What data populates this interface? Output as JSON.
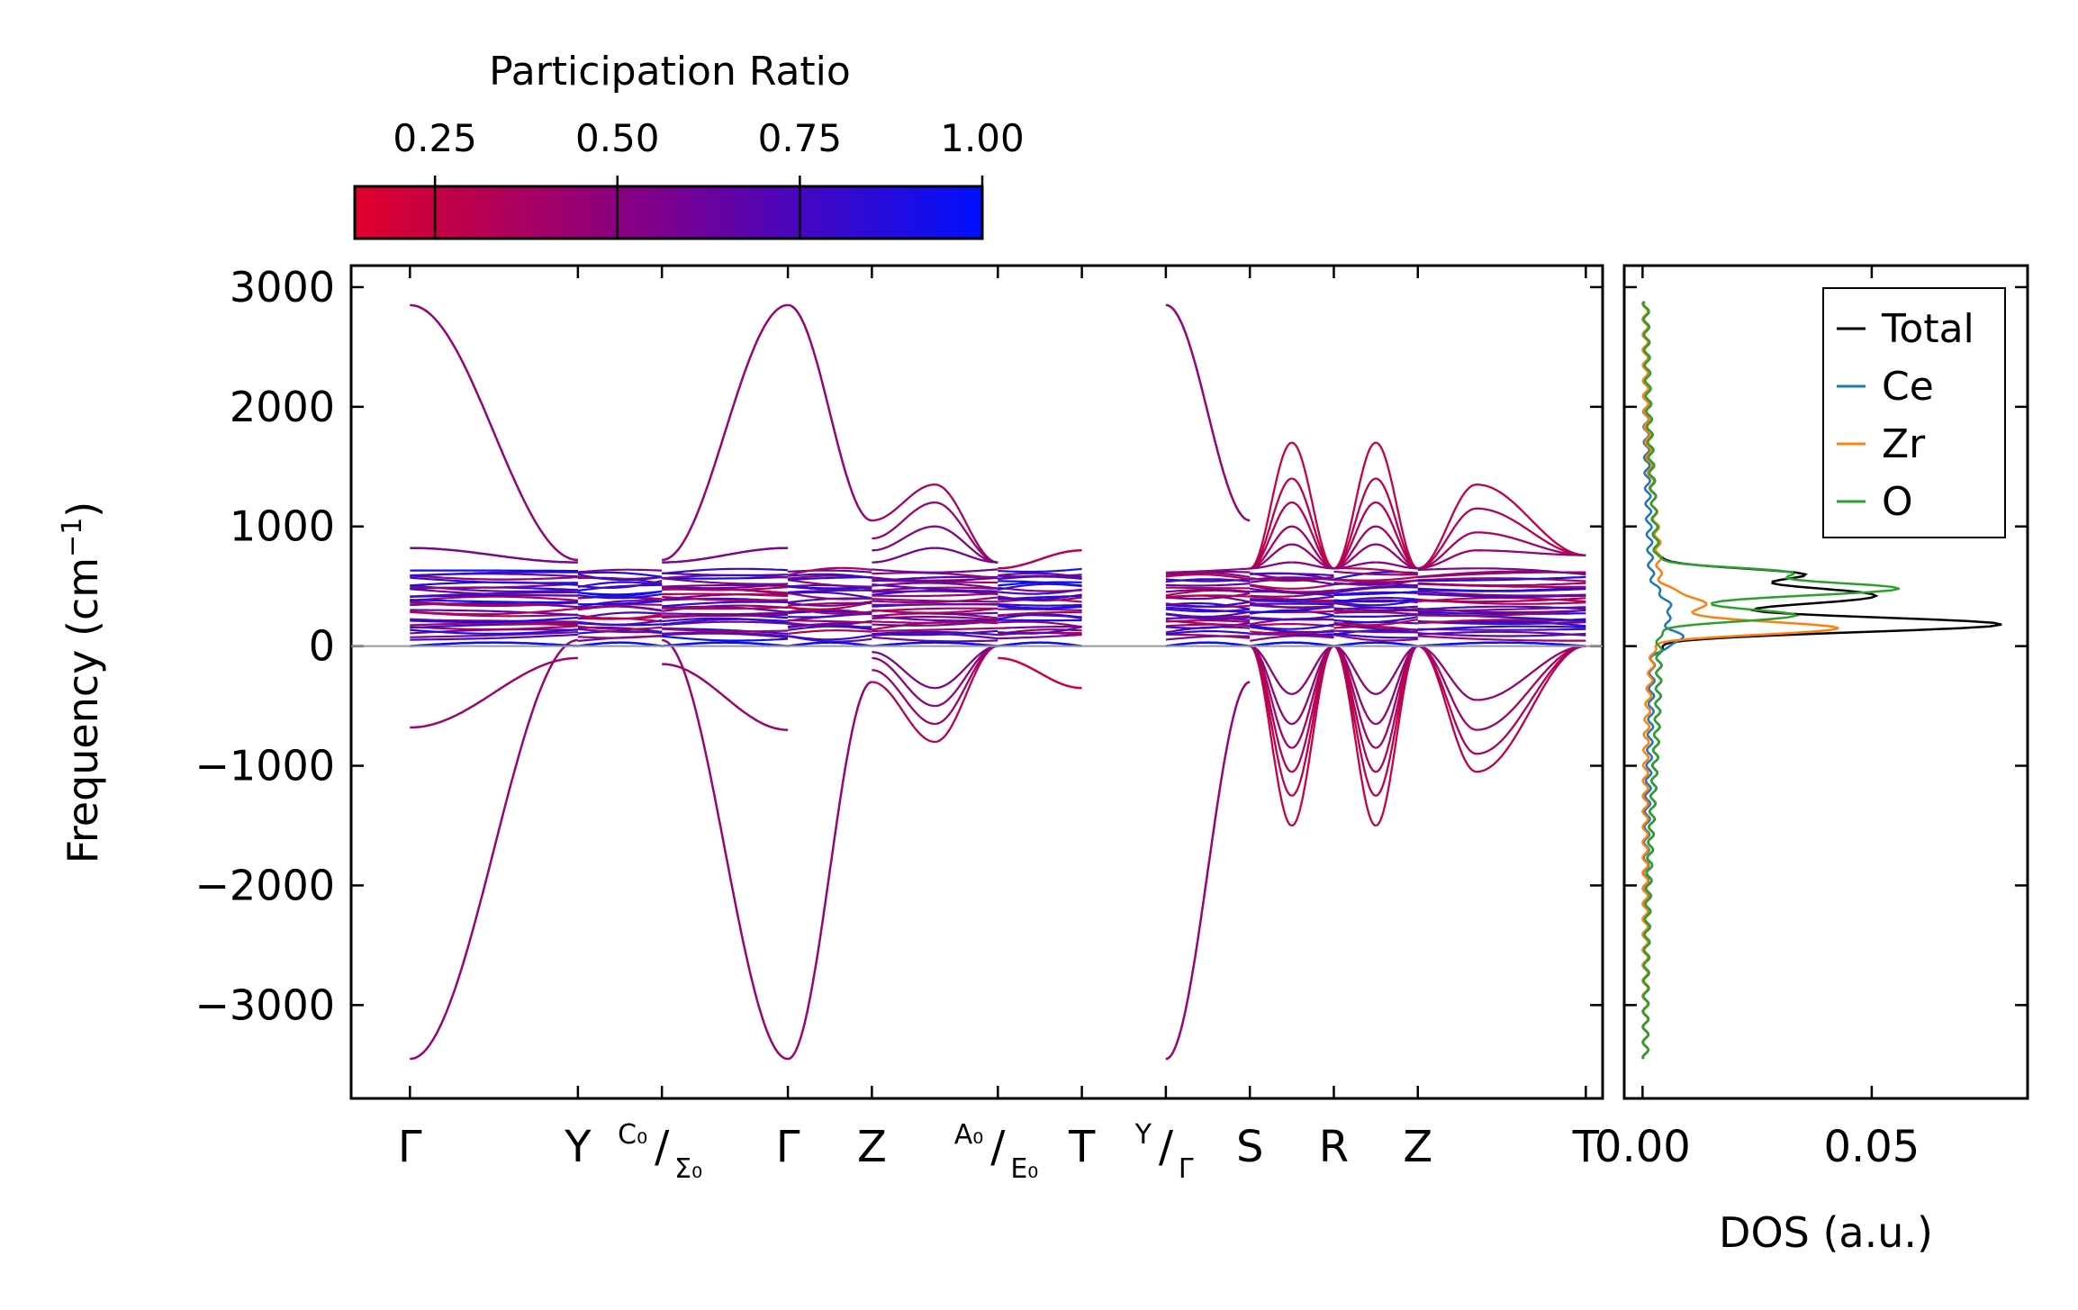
{
  "colorbar": {
    "title": "Participation Ratio",
    "ticks": [
      0.25,
      0.5,
      0.75,
      1.0
    ],
    "tick_labels": [
      "0.25",
      "0.50",
      "0.75",
      "1.00"
    ],
    "range": [
      0.14,
      1.0
    ],
    "color_low": "#e0002a",
    "color_high": "#0010ff"
  },
  "chart_data": [
    {
      "type": "line",
      "title": "",
      "xlabel": "",
      "ylabel_main": "Frequency (cm",
      "ylabel_sup": "−1",
      "ylabel_close": ")",
      "ylim": [
        -3780,
        3180
      ],
      "yticks": [
        -3000,
        -2000,
        -1000,
        0,
        1000,
        2000,
        3000
      ],
      "ytick_labels": [
        "−3000",
        "−2000",
        "−1000",
        "0",
        "1000",
        "2000",
        "3000"
      ],
      "xlim": [
        -0.7,
        14.2
      ],
      "high_symmetry_points": [
        {
          "x": 0,
          "label": "Γ"
        },
        {
          "x": 2,
          "label": "Y"
        },
        {
          "x": 3,
          "top": "C₀",
          "bottom": "Σ₀"
        },
        {
          "x": 4.5,
          "label": "Γ"
        },
        {
          "x": 5.5,
          "label": "Z"
        },
        {
          "x": 7,
          "top": "A₀",
          "bottom": "E₀"
        },
        {
          "x": 8,
          "label": "T"
        },
        {
          "x": 9,
          "top": "Y",
          "bottom": "Γ"
        },
        {
          "x": 10,
          "label": "S"
        },
        {
          "x": 11,
          "label": "R"
        },
        {
          "x": 12,
          "label": "Z"
        },
        {
          "x": 14,
          "label": "T"
        }
      ],
      "segments": [
        [
          0,
          2
        ],
        [
          2,
          3
        ],
        [
          3,
          4.5
        ],
        [
          4.5,
          5.5
        ],
        [
          5.5,
          7
        ],
        [
          7,
          8
        ],
        [
          9,
          10
        ],
        [
          10,
          11
        ],
        [
          11,
          12
        ],
        [
          12,
          14
        ]
      ],
      "notable_bands": {
        "upper_max": 2850,
        "lower_min": -3450,
        "dense_band_range": [
          50,
          650
        ]
      }
    },
    {
      "type": "line",
      "xlabel": "DOS (a.u.)",
      "xlim": [
        -0.004,
        0.084
      ],
      "xticks": [
        0.0,
        0.05
      ],
      "xtick_labels": [
        "0.00",
        "0.05"
      ],
      "legend_position": "top-right",
      "series": [
        {
          "name": "Total",
          "color": "#000000",
          "peak_value": 0.08,
          "peak_at": 230
        },
        {
          "name": "Ce",
          "color": "#1f77b4",
          "peak_value": 0.006,
          "peak_at": 50
        },
        {
          "name": "Zr",
          "color": "#ff7f0e",
          "peak_value": 0.045,
          "peak_at": 150
        },
        {
          "name": "O",
          "color": "#2ca02c",
          "peak_value": 0.056,
          "peak_at": 500
        }
      ]
    }
  ]
}
